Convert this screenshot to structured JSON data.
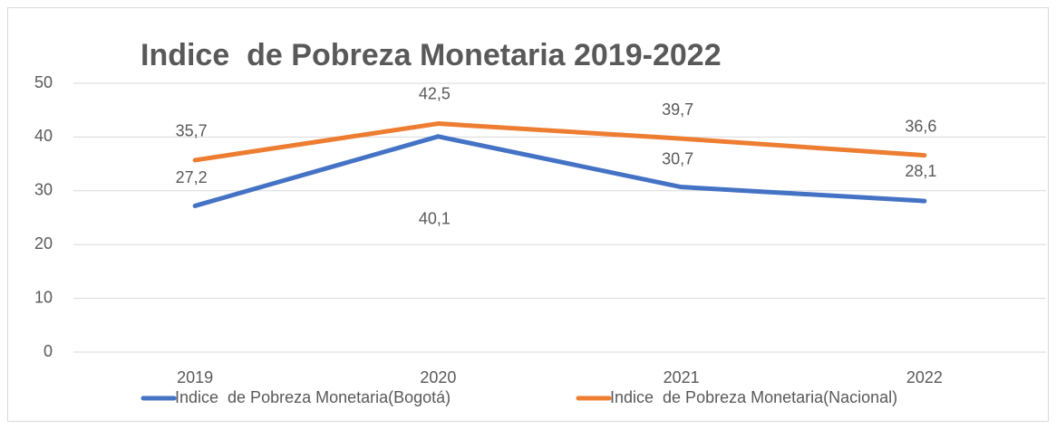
{
  "chart_data": {
    "type": "line",
    "title": "Indice  de Pobreza Monetaria 2019-2022",
    "categories": [
      "2019",
      "2020",
      "2021",
      "2022"
    ],
    "series": [
      {
        "name": "Indice  de Pobreza Monetaria(Bogotá)",
        "color": "#4472c4",
        "values": [
          27.2,
          40.1,
          30.7,
          28.1
        ],
        "value_labels": [
          "27,2",
          "40,1",
          "30,7",
          "28,1"
        ]
      },
      {
        "name": "Indice  de Pobreza Monetaria(Nacional)",
        "color": "#ed7d31",
        "values": [
          35.7,
          42.5,
          39.7,
          36.6
        ],
        "value_labels": [
          "35,7",
          "42,5",
          "39,7",
          "36,6"
        ]
      }
    ],
    "ylim": [
      0,
      50
    ],
    "yticks": [
      0,
      10,
      20,
      30,
      40,
      50
    ],
    "grid": true,
    "legend": "bottom"
  }
}
